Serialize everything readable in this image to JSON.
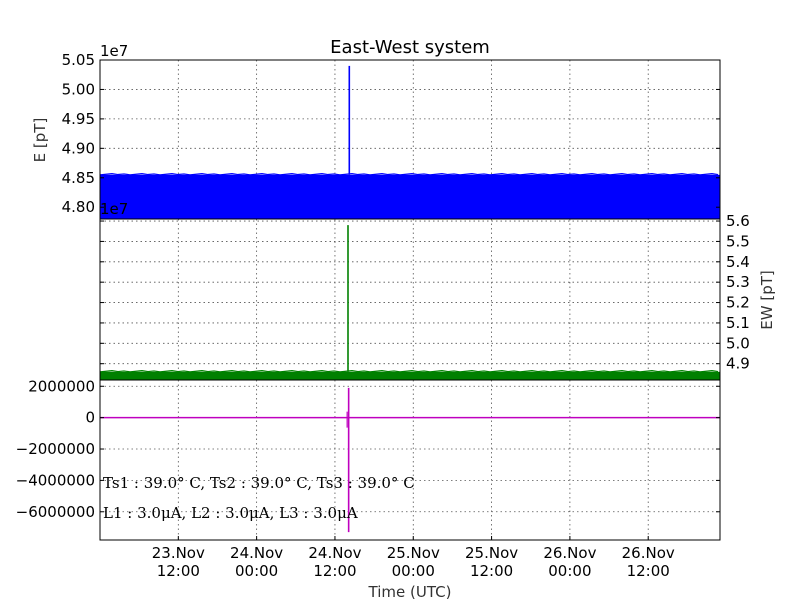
{
  "chart_data": {
    "title": "East-West system",
    "xlabel": "Time (UTC)",
    "x_ticks": [
      {
        "line1": "23.Nov",
        "line2": "12:00",
        "t": 12
      },
      {
        "line1": "24.Nov",
        "line2": "00:00",
        "t": 24
      },
      {
        "line1": "24.Nov",
        "line2": "12:00",
        "t": 36
      },
      {
        "line1": "25.Nov",
        "line2": "00:00",
        "t": 48
      },
      {
        "line1": "25.Nov",
        "line2": "12:00",
        "t": 60
      },
      {
        "line1": "26.Nov",
        "line2": "00:00",
        "t": 72
      },
      {
        "line1": "26.Nov",
        "line2": "12:00",
        "t": 84
      }
    ],
    "x_range": [
      0,
      95
    ],
    "panels": [
      {
        "type": "line",
        "ylabel": "E [pT]",
        "multiplier": "1e7",
        "ylim": [
          4.78,
          5.05
        ],
        "y_ticks": [
          "5.05",
          "5.00",
          "4.95",
          "4.90",
          "4.85",
          "4.80"
        ],
        "y_tick_values": [
          5.05,
          5.0,
          4.95,
          4.9,
          4.85,
          4.8
        ],
        "color": "#0000ff",
        "band": [
          4.78,
          4.855
        ],
        "spike": {
          "t": 38.2,
          "from": 4.855,
          "to": 5.04
        }
      },
      {
        "type": "line",
        "ylabel": "EW [pT]",
        "multiplier": "1e7",
        "ylim": [
          4.82,
          5.61
        ],
        "y_ticks": [
          "5.6",
          "5.5",
          "5.4",
          "5.3",
          "5.2",
          "5.1",
          "5.0",
          "4.9"
        ],
        "y_tick_values": [
          5.6,
          5.5,
          5.4,
          5.3,
          5.2,
          5.1,
          5.0,
          4.9
        ],
        "color": "#008000",
        "band": [
          4.82,
          4.86
        ],
        "spike": {
          "t": 38.0,
          "from": 4.86,
          "to": 5.58
        }
      },
      {
        "type": "line",
        "ylabel": "",
        "ylim": [
          -7800000,
          2400000
        ],
        "y_ticks": [
          "2000000",
          "0",
          "−2000000",
          "−4000000",
          "−6000000"
        ],
        "y_tick_values": [
          2000000,
          0,
          -2000000,
          -4000000,
          -6000000
        ],
        "color": "#bf00bf",
        "baseline": 0,
        "spike": {
          "t": 38.1,
          "from": -7300000,
          "to": 1900000
        }
      }
    ],
    "annotations": [
      "Ts1 : 39.0° C, Ts2 : 39.0° C, Ts3 : 39.0° C",
      "L1 : 3.0μA, L2 : 3.0μA, L3 : 3.0μA"
    ],
    "grid": true
  }
}
